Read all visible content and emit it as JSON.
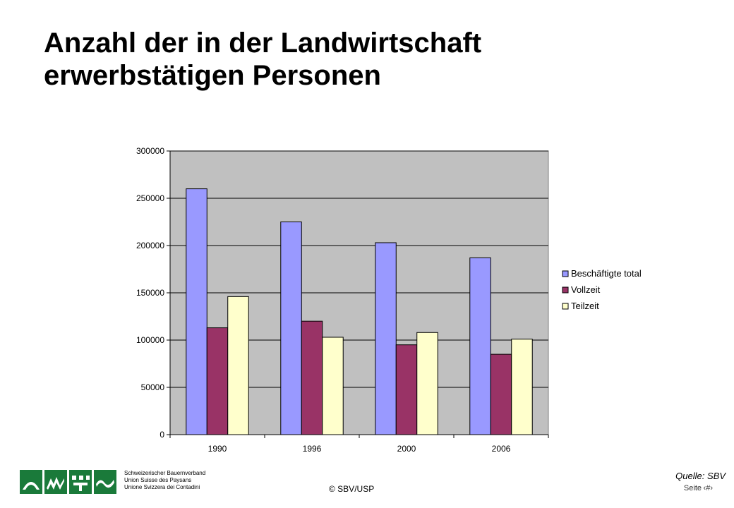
{
  "slide": {
    "title_line1": "Anzahl der in der Landwirtschaft",
    "title_line2": "erwerbstätigen Personen"
  },
  "footer": {
    "org_de": "Schweizerischer Bauernverband",
    "org_fr": "Union Suisse des Paysans",
    "org_it": "Unione Svizzera dei Contadini",
    "copyright": "© SBV/USP",
    "source": "Quelle: SBV",
    "page_label": "Seite",
    "page_number": "‹#›"
  },
  "colors": {
    "plot_bg": "#c0c0c0",
    "beschaeftigte": "#9999ff",
    "vollzeit": "#993366",
    "teilzeit": "#ffffcc",
    "logo_green": "#1a7a3a"
  },
  "chart_data": {
    "type": "bar",
    "categories": [
      "1990",
      "1996",
      "2000",
      "2006"
    ],
    "series": [
      {
        "name": "Beschäftigte total",
        "values": [
          260000,
          225000,
          203000,
          187000
        ],
        "color": "#9999ff"
      },
      {
        "name": "Vollzeit",
        "values": [
          113000,
          120000,
          95000,
          85000
        ],
        "color": "#993366"
      },
      {
        "name": "Teilzeit",
        "values": [
          146000,
          103000,
          108000,
          101000
        ],
        "color": "#ffffcc"
      }
    ],
    "yticks": [
      "0",
      "50000",
      "100000",
      "150000",
      "200000",
      "250000",
      "300000"
    ],
    "ylim": [
      0,
      300000
    ],
    "grid": true,
    "legend_position": "right"
  }
}
